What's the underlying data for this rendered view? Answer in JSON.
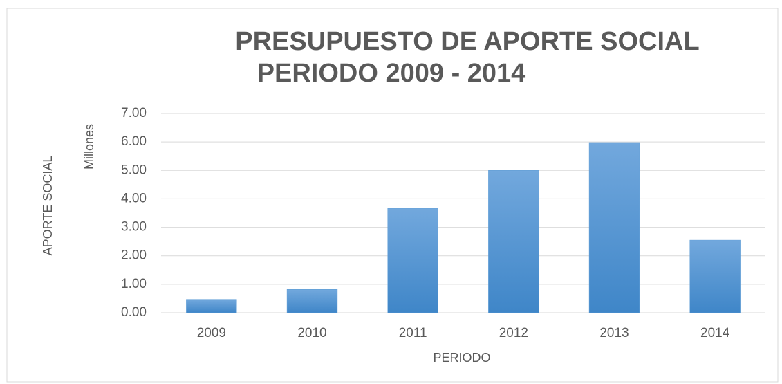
{
  "chart_data": {
    "type": "bar",
    "title": [
      "PRESUPUESTO DE APORTE SOCIAL",
      "PERIODO 2009 - 2014"
    ],
    "x_label": "PERIODO",
    "y_label": "APORTE SOCIAL",
    "y_unit": "Millones",
    "categories": [
      "2009",
      "2010",
      "2011",
      "2012",
      "2013",
      "2014"
    ],
    "values": [
      0.47,
      0.82,
      3.67,
      5.0,
      5.98,
      2.55
    ],
    "color": "#5b9bd5",
    "ylim": [
      0,
      7
    ],
    "yticks": [
      {
        "value": 0,
        "label": "0.00"
      },
      {
        "value": 1,
        "label": "1.00"
      },
      {
        "value": 2,
        "label": "2.00"
      },
      {
        "value": 3,
        "label": "3.00"
      },
      {
        "value": 4,
        "label": "4.00"
      },
      {
        "value": 5,
        "label": "5.00"
      },
      {
        "value": 6,
        "label": "6.00"
      },
      {
        "value": 7,
        "label": "7.00"
      }
    ],
    "grid": true
  }
}
